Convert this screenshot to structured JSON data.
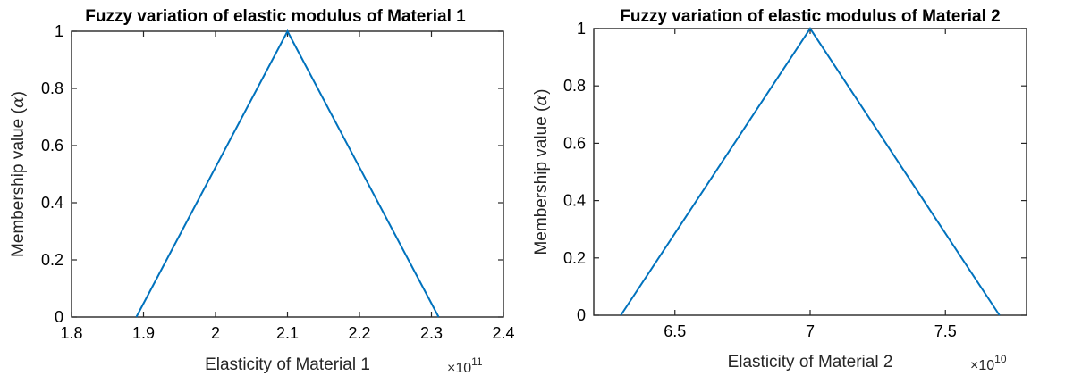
{
  "chart_data": [
    {
      "type": "line",
      "title": "Fuzzy variation of elastic modulus of Material 1",
      "xlabel": "Elasticity of Material 1",
      "ylabel": "Membership value (",
      "ylabel_symbol": "α",
      "ylabel_close": ")",
      "x_multiplier_base": "×10",
      "x_multiplier_exp": "11",
      "xlim": [
        1.8,
        2.4
      ],
      "ylim": [
        0,
        1
      ],
      "xticks": [
        1.8,
        1.9,
        2.0,
        2.1,
        2.2,
        2.3,
        2.4
      ],
      "xtick_labels": [
        "1.8",
        "1.9",
        "2",
        "2.1",
        "2.2",
        "2.3",
        "2.4"
      ],
      "yticks": [
        0,
        0.2,
        0.4,
        0.6,
        0.8,
        1
      ],
      "ytick_labels": [
        "0",
        "0.2",
        "0.4",
        "0.6",
        "0.8",
        "1"
      ],
      "grid": false,
      "series": [
        {
          "x": [
            1.89,
            2.1,
            2.31
          ],
          "y": [
            0,
            1,
            0
          ],
          "color": "#0072BD"
        }
      ]
    },
    {
      "type": "line",
      "title": "Fuzzy variation of elastic modulus of Material 2",
      "xlabel": "Elasticity of Material 2",
      "ylabel": "Membership value (",
      "ylabel_symbol": "α",
      "ylabel_close": ")",
      "x_multiplier_base": "×10",
      "x_multiplier_exp": "10",
      "xlim": [
        6.2,
        7.8
      ],
      "ylim": [
        0,
        1
      ],
      "xticks": [
        6.5,
        7.0,
        7.5
      ],
      "xtick_labels": [
        "6.5",
        "7",
        "7.5"
      ],
      "yticks": [
        0,
        0.2,
        0.4,
        0.6,
        0.8,
        1
      ],
      "ytick_labels": [
        "0",
        "0.2",
        "0.4",
        "0.6",
        "0.8",
        "1"
      ],
      "grid": false,
      "series": [
        {
          "x": [
            6.3,
            7.0,
            7.7
          ],
          "y": [
            0,
            1,
            0
          ],
          "color": "#0072BD"
        }
      ]
    }
  ]
}
